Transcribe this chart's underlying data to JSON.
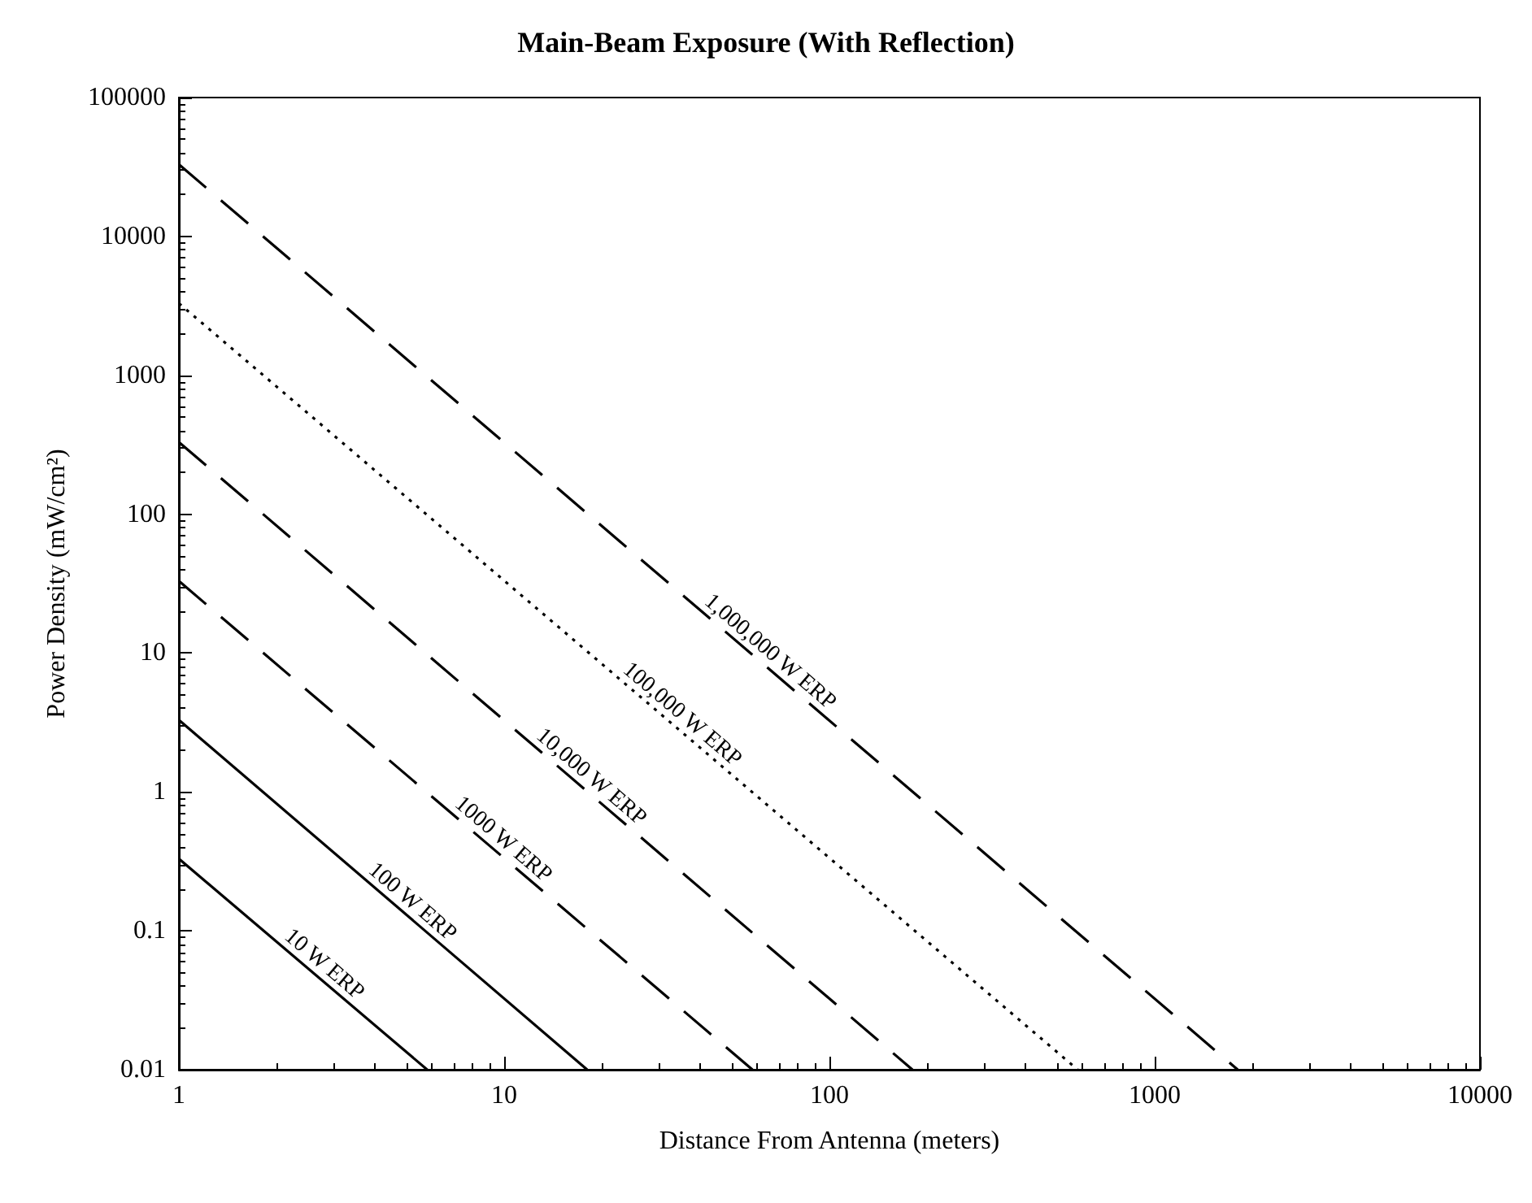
{
  "chart_data": {
    "type": "line",
    "title": "Main-Beam Exposure (With Reflection)",
    "xlabel": "Distance From Antenna (meters)",
    "ylabel": "Power Density (mW/cm²)",
    "log": "xy",
    "grid": false,
    "legend": false,
    "marker": "none",
    "xlim": [
      1,
      10000
    ],
    "ylim": [
      0.01,
      100000
    ],
    "xticks": [
      1,
      10,
      100,
      1000,
      10000
    ],
    "yticks": [
      0.01,
      0.1,
      1,
      10,
      100,
      1000,
      10000,
      100000
    ],
    "series": [
      {
        "name": "10 W ERP",
        "color": "#000000",
        "line_style": "solid",
        "x": [
          1,
          5.8
        ],
        "values": [
          0.33,
          0.01
        ]
      },
      {
        "name": "100 W ERP",
        "color": "#000000",
        "line_style": "solid",
        "x": [
          1,
          18
        ],
        "values": [
          3.3,
          0.01
        ]
      },
      {
        "name": "1000 W ERP",
        "color": "#000000",
        "line_style": "dashed",
        "x": [
          1,
          58
        ],
        "values": [
          33,
          0.01
        ]
      },
      {
        "name": "10,000 W ERP",
        "color": "#000000",
        "line_style": "dashed",
        "x": [
          1,
          180
        ],
        "values": [
          330,
          0.01
        ]
      },
      {
        "name": "100,000 W ERP",
        "color": "#000000",
        "line_style": "dotted",
        "x": [
          1,
          580
        ],
        "values": [
          3300,
          0.01
        ]
      },
      {
        "name": "1,000,000 W ERP",
        "color": "#000000",
        "line_style": "dashed",
        "x": [
          1,
          1800
        ],
        "values": [
          33000,
          0.01
        ]
      }
    ]
  }
}
